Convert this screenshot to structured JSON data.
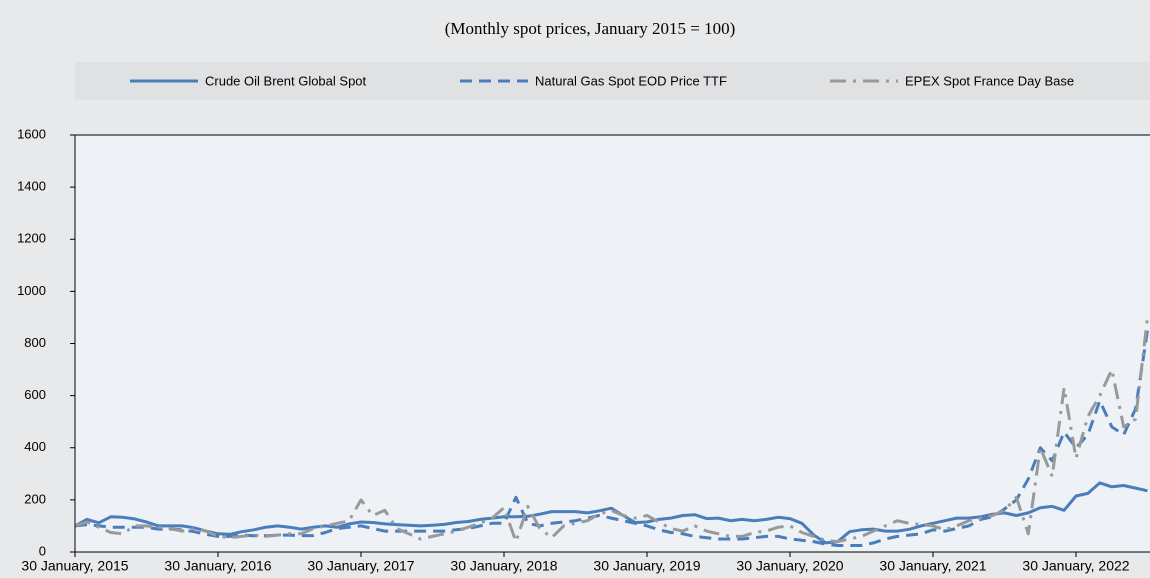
{
  "chart_data": {
    "type": "line",
    "subtitle": "(Monthly spot prices, January 2015 = 100)",
    "categories": [
      "30 January, 2015",
      null,
      null,
      null,
      null,
      null,
      null,
      null,
      null,
      null,
      null,
      null,
      "30 January, 2016",
      null,
      null,
      null,
      null,
      null,
      null,
      null,
      null,
      null,
      null,
      null,
      "30 January, 2017",
      null,
      null,
      null,
      null,
      null,
      null,
      null,
      null,
      null,
      null,
      null,
      "30 January, 2018",
      null,
      null,
      null,
      null,
      null,
      null,
      null,
      null,
      null,
      null,
      null,
      "30 January, 2019",
      null,
      null,
      null,
      null,
      null,
      null,
      null,
      null,
      null,
      null,
      null,
      "30 January, 2020",
      null,
      null,
      null,
      null,
      null,
      null,
      null,
      null,
      null,
      null,
      null,
      "30 January, 2021",
      null,
      null,
      null,
      null,
      null,
      null,
      null,
      null,
      null,
      null,
      null,
      "30 January, 2022",
      null,
      null,
      null,
      null,
      null,
      null
    ],
    "series": [
      {
        "name": "Crude Oil Brent Global Spot",
        "color": "#4a7ebb",
        "style": "solid",
        "values": [
          100,
          125,
          112,
          135,
          133,
          127,
          115,
          100,
          100,
          100,
          93,
          80,
          70,
          68,
          78,
          85,
          95,
          100,
          95,
          88,
          95,
          100,
          95,
          108,
          115,
          113,
          108,
          105,
          103,
          100,
          103,
          106,
          113,
          117,
          125,
          130,
          135,
          135,
          137,
          145,
          155,
          155,
          155,
          150,
          158,
          168,
          140,
          113,
          115,
          125,
          130,
          140,
          143,
          128,
          130,
          120,
          125,
          120,
          125,
          133,
          128,
          110,
          65,
          35,
          40,
          78,
          85,
          88,
          80,
          80,
          87,
          100,
          110,
          120,
          130,
          130,
          135,
          145,
          150,
          140,
          150,
          170,
          175,
          160,
          215,
          225,
          265,
          250,
          255,
          245,
          235
        ]
      },
      {
        "name": "Natural Gas Spot EOD Price TTF",
        "color": "#4a7ebb",
        "style": "dashed",
        "values": [
          100,
          105,
          100,
          95,
          95,
          95,
          95,
          88,
          88,
          85,
          78,
          68,
          60,
          60,
          65,
          62,
          62,
          65,
          65,
          63,
          63,
          75,
          90,
          95,
          100,
          90,
          80,
          80,
          80,
          80,
          80,
          80,
          85,
          90,
          100,
          110,
          110,
          210,
          110,
          100,
          110,
          115,
          120,
          130,
          140,
          130,
          120,
          110,
          100,
          85,
          75,
          70,
          60,
          55,
          50,
          50,
          50,
          55,
          60,
          60,
          50,
          45,
          40,
          30,
          25,
          25,
          25,
          35,
          50,
          60,
          65,
          70,
          85,
          80,
          90,
          100,
          125,
          135,
          165,
          200,
          280,
          400,
          350,
          460,
          400,
          450,
          580,
          480,
          450,
          550,
          850
        ]
      },
      {
        "name": "EPEX Spot France Day Base",
        "color": "#999999",
        "style": "dashdot",
        "values": [
          100,
          115,
          95,
          75,
          70,
          100,
          100,
          95,
          90,
          80,
          90,
          80,
          60,
          55,
          60,
          65,
          60,
          65,
          70,
          70,
          90,
          100,
          110,
          120,
          200,
          140,
          160,
          90,
          70,
          50,
          60,
          70,
          80,
          95,
          110,
          130,
          170,
          40,
          175,
          90,
          55,
          100,
          110,
          120,
          145,
          160,
          140,
          130,
          140,
          115,
          90,
          80,
          100,
          80,
          70,
          60,
          60,
          75,
          80,
          95,
          100,
          75,
          60,
          45,
          40,
          50,
          60,
          80,
          100,
          120,
          110,
          105,
          100,
          85,
          100,
          120,
          130,
          140,
          160,
          210,
          70,
          400,
          290,
          630,
          360,
          520,
          600,
          700,
          480,
          510,
          900
        ]
      }
    ],
    "ylim": [
      0,
      1600
    ],
    "yticks": [
      0,
      200,
      400,
      600,
      800,
      1000,
      1200,
      1400,
      1600
    ],
    "legend": "top"
  }
}
